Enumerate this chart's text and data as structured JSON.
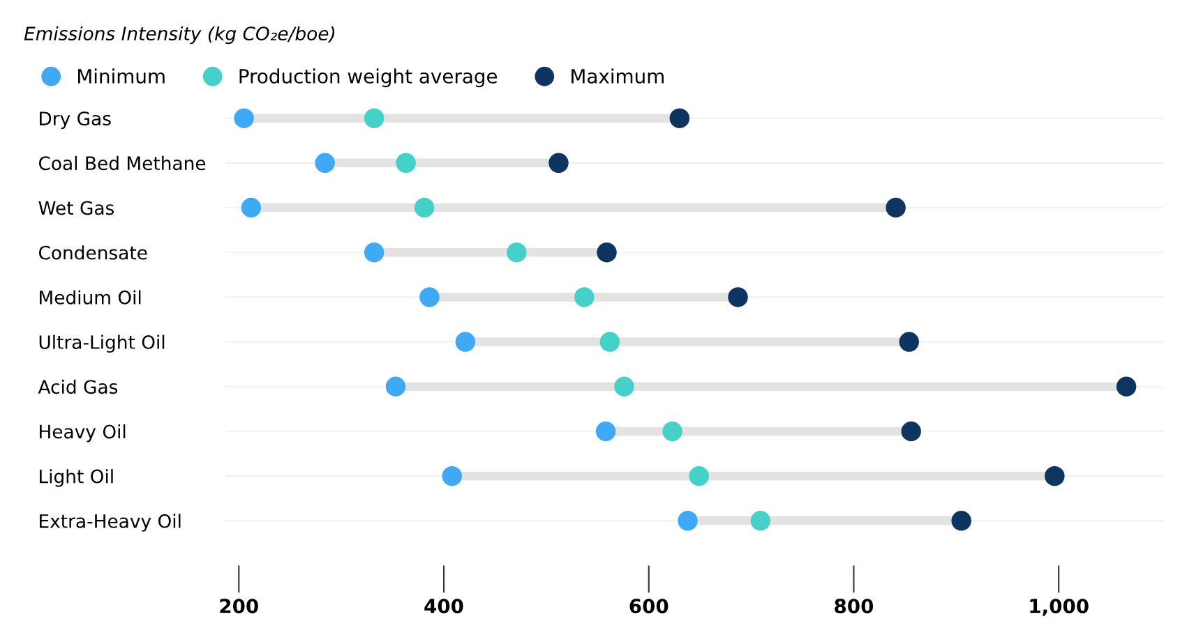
{
  "chart_data": {
    "type": "scatter",
    "orientation": "horizontal",
    "title": "Emissions Intensity (kg CO₂e/boe)",
    "categories": [
      "Dry Gas",
      "Coal Bed Methane",
      "Wet Gas",
      "Condensate",
      "Medium Oil",
      "Ultra-Light Oil",
      "Acid Gas",
      "Heavy Oil",
      "Light Oil",
      "Extra-Heavy Oil"
    ],
    "series": [
      {
        "name": "Minimum",
        "color": "#3fa9f5",
        "values": [
          205,
          284,
          212,
          332,
          386,
          421,
          353,
          558,
          408,
          638
        ]
      },
      {
        "name": "Production weight average",
        "color": "#45d0c8",
        "values": [
          332,
          363,
          381,
          471,
          537,
          562,
          576,
          623,
          649,
          709
        ]
      },
      {
        "name": "Maximum",
        "color": "#0e3560",
        "values": [
          630,
          512,
          841,
          559,
          687,
          854,
          1066,
          856,
          996,
          905
        ]
      }
    ],
    "xlim": [
      187,
      1102
    ],
    "xticks": [
      200,
      400,
      600,
      800,
      {
        "value": 1000,
        "label": "1,000"
      }
    ],
    "grid": "y",
    "legend": "top left",
    "marker": "circle"
  }
}
